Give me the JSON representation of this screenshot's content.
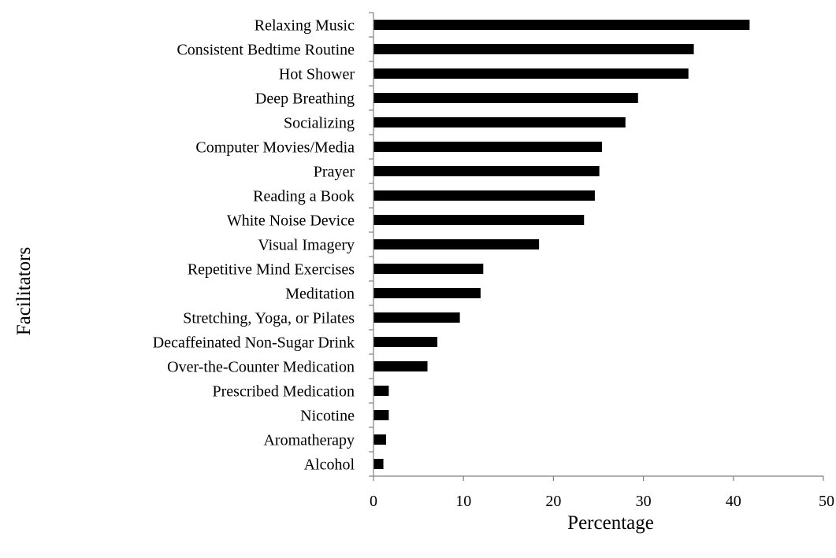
{
  "chart_data": {
    "type": "bar",
    "orientation": "horizontal",
    "categories": [
      "Relaxing Music",
      "Consistent Bedtime Routine",
      "Hot Shower",
      "Deep Breathing",
      "Socializing",
      "Computer Movies/Media",
      "Prayer",
      "Reading a Book",
      "White Noise Device",
      "Visual Imagery",
      "Repetitive Mind Exercises",
      "Meditation",
      "Stretching, Yoga, or Pilates",
      "Decaffeinated Non-Sugar Drink",
      "Over-the-Counter Medication",
      "Prescribed Medication",
      "Nicotine",
      "Aromatherapy",
      "Alcohol"
    ],
    "values": [
      41.8,
      35.6,
      35.0,
      29.4,
      28.0,
      25.4,
      25.1,
      24.6,
      23.4,
      18.4,
      12.2,
      11.9,
      9.6,
      7.1,
      6.0,
      1.7,
      1.7,
      1.4,
      1.1
    ],
    "xlabel": "Percentage",
    "ylabel": "Facilitators",
    "xlim": [
      0,
      50
    ],
    "xticks": [
      "0",
      "10",
      "20",
      "30",
      "40",
      "50"
    ],
    "grid": false,
    "legend": "none",
    "bar_color": "#000000"
  }
}
